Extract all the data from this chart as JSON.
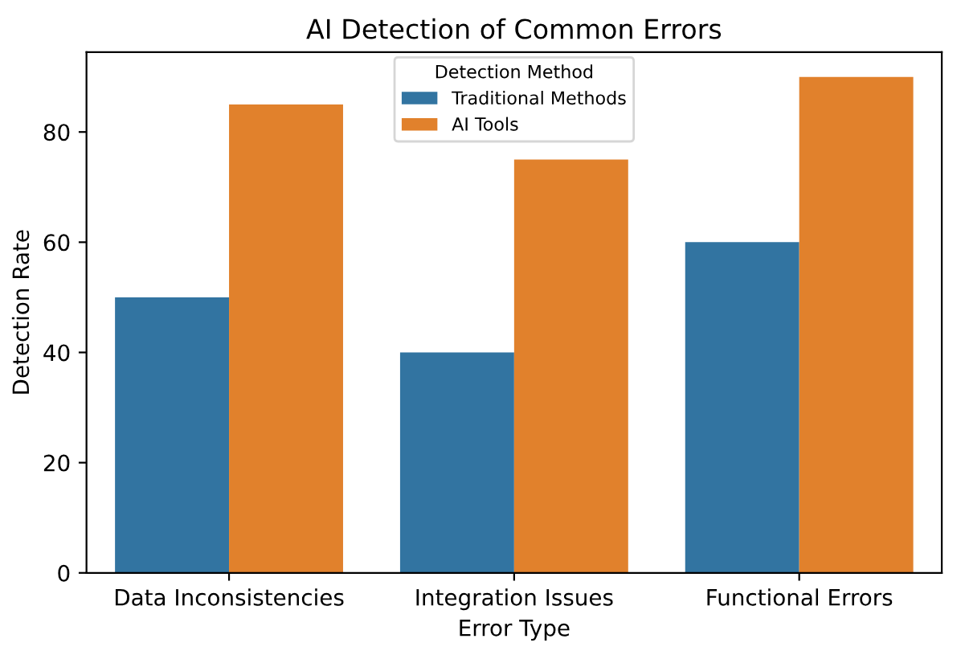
{
  "chart_data": {
    "type": "bar",
    "title": "AI Detection of Common Errors",
    "xlabel": "Error Type",
    "ylabel": "Detection Rate",
    "legend_title": "Detection Method",
    "categories": [
      "Data Inconsistencies",
      "Integration Issues",
      "Functional Errors"
    ],
    "series": [
      {
        "name": "Traditional Methods",
        "color": "#3274a1",
        "values": [
          50,
          40,
          60
        ]
      },
      {
        "name": "AI Tools",
        "color": "#e1812c",
        "values": [
          85,
          75,
          90
        ]
      }
    ],
    "ylim": [
      0,
      94.5
    ],
    "yticks": [
      0,
      20,
      40,
      60,
      80
    ],
    "legend": "top center",
    "grid": false
  }
}
